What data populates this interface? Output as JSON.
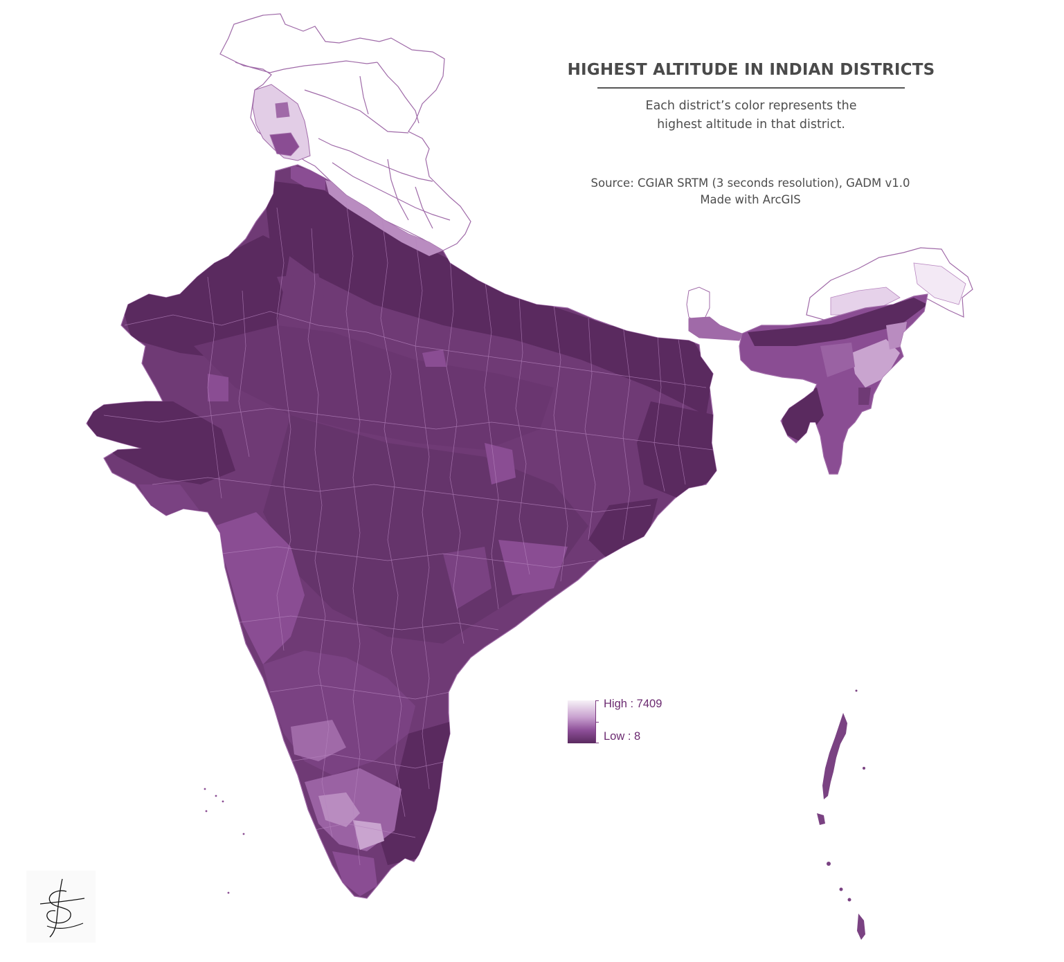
{
  "map": {
    "title": "HIGHEST ALTITUDE IN INDIAN DISTRICTS",
    "subtitle": "Each district’s color represents the\nhighest altitude in that district.",
    "source_line1": "Source: CGIAR SRTM (3 seconds resolution), GADM v1.0",
    "source_line2": "Made with ArcGIS",
    "region": "India",
    "unit_of_analysis": "district",
    "color_scheme": {
      "high": "#f7f1f7",
      "mid_high": "#c79fce",
      "mid": "#8d4f98",
      "low": "#5a2a5f",
      "boundary": "#c49bcb",
      "outline": "#a06aa8"
    }
  },
  "legend": {
    "high_label": "High : 7409",
    "low_label": "Low : 8",
    "high_value": 7409,
    "low_value": 8
  }
}
